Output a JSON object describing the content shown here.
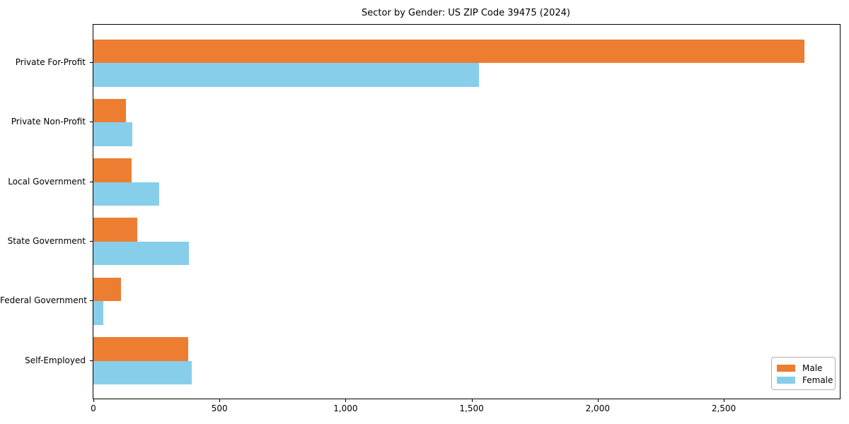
{
  "chart_data": {
    "type": "bar",
    "orientation": "horizontal",
    "title": "Sector by Gender: US ZIP Code 39475 (2024)",
    "categories": [
      "Private For-Profit",
      "Private Non-Profit",
      "Local Government",
      "State Government",
      "Federal Government",
      "Self-Employed"
    ],
    "series": [
      {
        "name": "Male",
        "color": "#ED7D31",
        "values": [
          2820,
          130,
          150,
          175,
          110,
          375
        ]
      },
      {
        "name": "Female",
        "color": "#87CEEB",
        "values": [
          1530,
          155,
          260,
          380,
          40,
          390
        ]
      }
    ],
    "x_ticks": [
      0,
      500,
      1000,
      1500,
      2000,
      2500
    ],
    "x_tick_labels": [
      "0",
      "500",
      "1,000",
      "1,500",
      "2,000",
      "2,500"
    ],
    "xlim": [
      0,
      2960
    ],
    "grid": false,
    "legend": {
      "position": "lower-right",
      "entries": [
        "Male",
        "Female"
      ]
    },
    "background_color": "#ffffff",
    "spine_color": "#000000"
  }
}
